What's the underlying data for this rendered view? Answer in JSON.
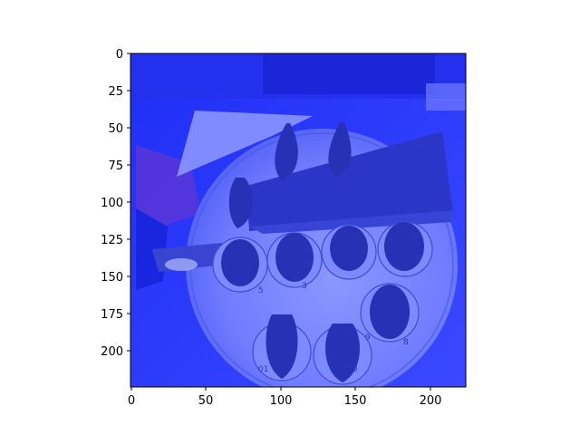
{
  "figure": {
    "type": "image_plot",
    "image": {
      "description_color_tint": "blue",
      "background": "#2f3cf0",
      "tray_color": "#7a86ff",
      "object_color": "#2631b5"
    },
    "x_axis": {
      "ticks": [
        "0",
        "50",
        "100",
        "150",
        "200"
      ],
      "range": [
        0,
        224
      ]
    },
    "y_axis": {
      "ticks": [
        "0",
        "25",
        "50",
        "75",
        "100",
        "125",
        "150",
        "175",
        "200"
      ],
      "range": [
        0,
        224
      ]
    },
    "tray_labels": [
      "3",
      "5",
      "8",
      "9",
      "10",
      "01"
    ]
  }
}
